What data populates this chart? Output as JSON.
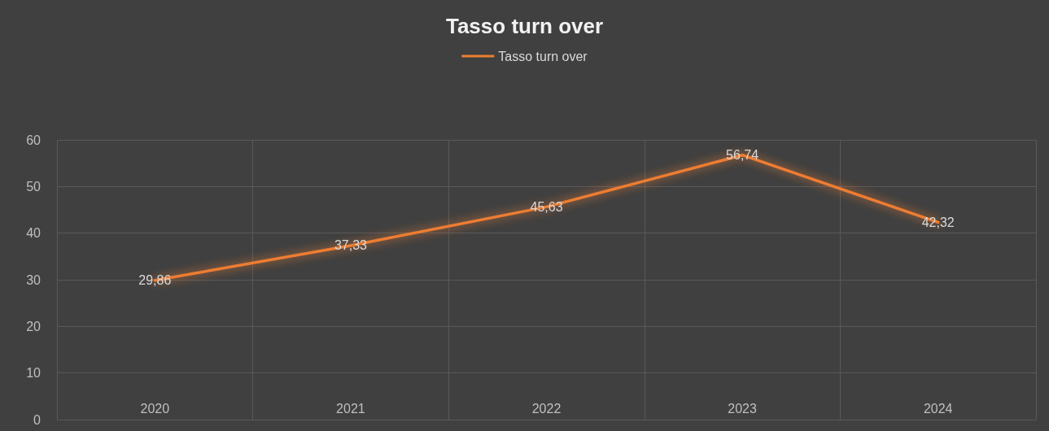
{
  "chart_data": {
    "type": "line",
    "title": "Tasso turn over",
    "categories": [
      "2020",
      "2021",
      "2022",
      "2023",
      "2024"
    ],
    "series": [
      {
        "name": "Tasso turn over",
        "color": "#ed7d31",
        "values": [
          29.86,
          37.33,
          45.63,
          56.74,
          42.32
        ],
        "value_labels": [
          "29,86",
          "37,33",
          "45,63",
          "56,74",
          "42,32"
        ]
      }
    ],
    "ylim": [
      0,
      60
    ],
    "yticks": [
      0,
      10,
      20,
      30,
      40,
      50,
      60
    ],
    "grid": true,
    "legend": "top",
    "marker": "none",
    "line_style": "solid"
  }
}
